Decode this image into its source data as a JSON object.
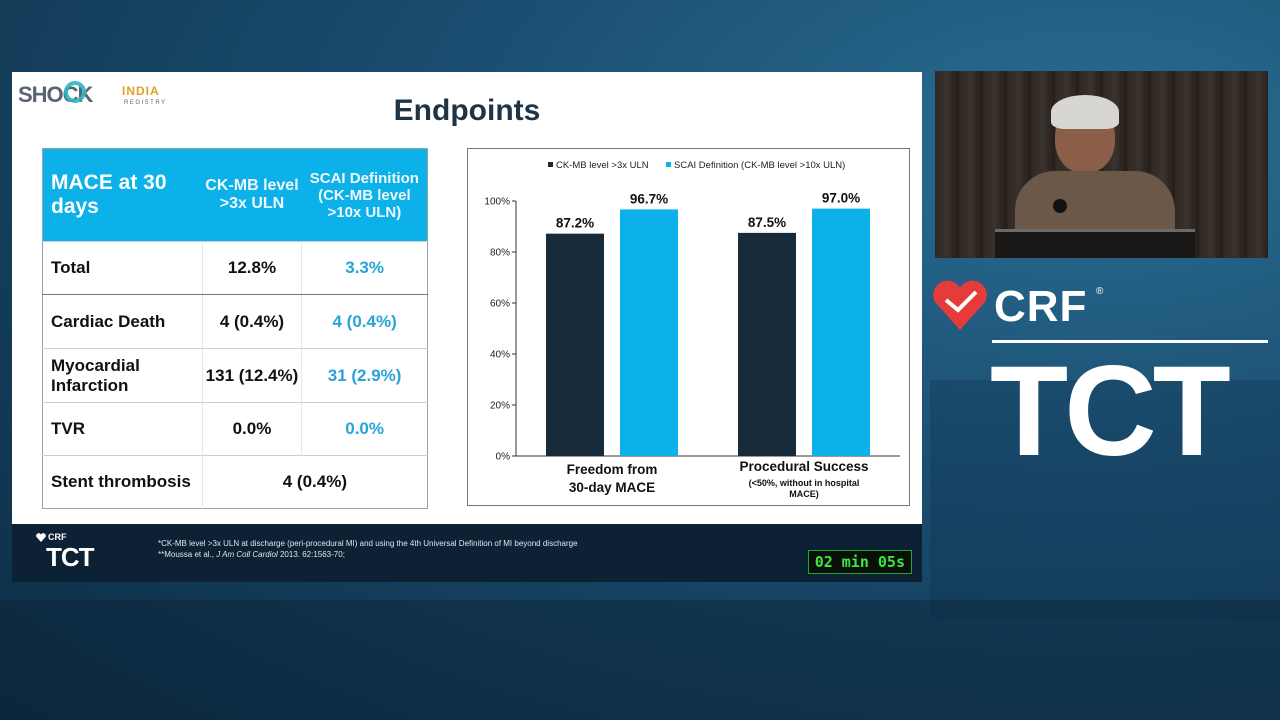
{
  "slide": {
    "title": "Endpoints",
    "logo": {
      "shock": "SHOCK",
      "india": "INDIA",
      "registry": "REGISTRY"
    }
  },
  "table": {
    "headers": [
      "MACE at 30 days",
      "CK-MB level >3x ULN",
      "SCAI Definition (CK-MB level >10x ULN)"
    ],
    "rows": [
      {
        "label": "Total",
        "ck": "12.8%",
        "scai": "3.3%"
      },
      {
        "label": "Cardiac Death",
        "ck": "4 (0.4%)",
        "scai": "4 (0.4%)"
      },
      {
        "label": "Myocardial Infarction",
        "ck": "131 (12.4%)",
        "scai": "31 (2.9%)"
      },
      {
        "label": "TVR",
        "ck": "0.0%",
        "scai": "0.0%"
      },
      {
        "label": "Stent thrombosis",
        "combined": "4 (0.4%)"
      }
    ]
  },
  "chart_data": {
    "type": "bar",
    "categories": [
      "Freedom from 30-day MACE",
      "Procedural Success"
    ],
    "category_sublabels": [
      "",
      "(<50%, without in hospital MACE)"
    ],
    "series": [
      {
        "name": "CK-MB level >3x ULN",
        "values": [
          87.2,
          87.5
        ],
        "color": "#172a3a"
      },
      {
        "name": "SCAI Definition (CK-MB level >10x ULN)",
        "values": [
          96.7,
          97.0
        ],
        "color": "#0bb1e8"
      }
    ],
    "data_labels": [
      [
        "87.2%",
        "87.5%"
      ],
      [
        "96.7%",
        "97.0%"
      ]
    ],
    "y_ticks": [
      "0%",
      "20%",
      "40%",
      "60%",
      "80%",
      "100%"
    ],
    "ylim": [
      0,
      100
    ],
    "legend": "top",
    "grid": false
  },
  "footer": {
    "crf": "CRF",
    "tct": "TCT",
    "footnote1": "*CK-MB level >3x ULN at discharge (peri-procedural MI) and using the 4th Universal Definition of MI beyond discharge",
    "footnote2_prefix": "**Moussa et al., ",
    "footnote2_journal": "J Am Coll Cardiol",
    "footnote2_suffix": " 2013. 62:1563-70;",
    "timer": "02 min 05s"
  },
  "brand": {
    "crf": "CRF",
    "reg": "®",
    "tct": "TCT"
  },
  "colors": {
    "accent": "#0bb1e8",
    "dark_bar": "#172a3a",
    "heart": "#e63b3b"
  }
}
